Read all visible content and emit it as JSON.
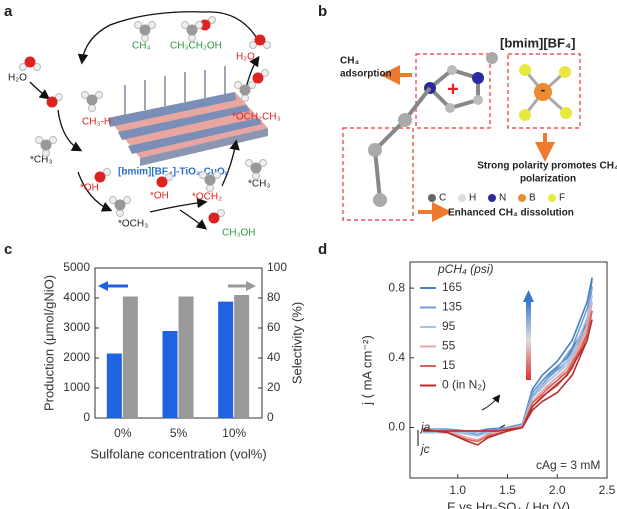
{
  "panel_labels": [
    "a",
    "b",
    "c",
    "d"
  ],
  "diagram_a": {
    "labels": [
      "H₂O",
      "CH₃-H",
      "*CH₃",
      "*OH",
      "*OCH₃",
      "*OH",
      "*OCH₂",
      "CH₃OH",
      "*CH₃",
      "*OCH₂CH₃",
      "H₂O",
      "CH₄",
      "CH₃CH₂OH",
      "[bmim][BF₄]-TiO₂-CuOₓ"
    ]
  },
  "diagram_b": {
    "title": "[bmim][BF₄]",
    "adsorption": [
      "CH₄",
      "adsorption"
    ],
    "polarization": [
      "Strong polarity promotes CH₄",
      "polarization"
    ],
    "dissolution": "Enhanced CH₄ dissolution",
    "atoms": [
      "C",
      "H",
      "N",
      "B",
      "F"
    ]
  },
  "chart_data": [
    {
      "type": "bar",
      "xlabel": "Sulfolane concentration (vol%)",
      "ylabel": "Production (μmol/gNiO)",
      "y2label": "Selectivity (%)",
      "categories": [
        "0%",
        "5%",
        "10%"
      ],
      "series": [
        {
          "color": "#1f63e0",
          "values": [
            2150,
            2900,
            3880
          ]
        },
        {
          "color": "#999999",
          "axis": "y2",
          "values": [
            81,
            81,
            82
          ]
        }
      ],
      "ylim": [
        0,
        5000
      ],
      "yticks": [
        0,
        1000,
        2000,
        3000,
        4000,
        5000
      ],
      "y2lim": [
        0,
        100
      ],
      "y2ticks": [
        0,
        20,
        40,
        60,
        80,
        100
      ]
    },
    {
      "type": "line",
      "xlabel": "E vs Hg₂SO₄ / Hg (V)",
      "ylabel": "j ( mA cm⁻²)",
      "legend_title": "pCH₄ (psi)",
      "x": [
        0.65,
        0.9,
        1.1,
        1.2,
        1.3,
        1.5,
        1.65,
        1.75,
        1.85,
        2.0,
        2.15,
        2.3,
        2.35,
        2.3,
        2.1,
        1.9,
        1.75,
        1.65,
        1.4,
        1.0,
        0.65
      ],
      "series": [
        {
          "name": "165",
          "color": "#4a7fc1",
          "values": [
            -0.01,
            -0.01,
            -0.02,
            -0.02,
            -0.01,
            0.0,
            0.02,
            0.22,
            0.3,
            0.38,
            0.5,
            0.72,
            0.86,
            0.6,
            0.4,
            0.3,
            0.2,
            0.02,
            -0.02,
            -0.03,
            -0.03
          ]
        },
        {
          "name": "135",
          "color": "#6f9fd4",
          "values": [
            -0.01,
            -0.01,
            -0.03,
            -0.04,
            -0.02,
            0.0,
            0.02,
            0.2,
            0.27,
            0.34,
            0.46,
            0.68,
            0.81,
            0.58,
            0.38,
            0.28,
            0.18,
            0.02,
            -0.02,
            -0.03,
            -0.03
          ]
        },
        {
          "name": "95",
          "color": "#a7c3e4",
          "values": [
            -0.01,
            -0.02,
            -0.04,
            -0.05,
            -0.03,
            -0.01,
            0.01,
            0.17,
            0.24,
            0.31,
            0.42,
            0.63,
            0.76,
            0.56,
            0.36,
            0.26,
            0.17,
            0.01,
            -0.02,
            -0.03,
            -0.03
          ]
        },
        {
          "name": "55",
          "color": "#e8a3a0",
          "values": [
            -0.01,
            -0.02,
            -0.06,
            -0.07,
            -0.04,
            -0.01,
            0.01,
            0.15,
            0.21,
            0.27,
            0.38,
            0.59,
            0.72,
            0.54,
            0.34,
            0.24,
            0.15,
            0.01,
            -0.02,
            -0.02,
            -0.02
          ]
        },
        {
          "name": "15",
          "color": "#d9625c",
          "values": [
            -0.01,
            -0.03,
            -0.07,
            -0.08,
            -0.05,
            -0.02,
            0.0,
            0.12,
            0.18,
            0.24,
            0.34,
            0.54,
            0.67,
            0.52,
            0.32,
            0.22,
            0.14,
            0.0,
            -0.02,
            -0.02,
            -0.02
          ]
        },
        {
          "name": "0 (in N₂)",
          "color": "#b5302d",
          "values": [
            -0.01,
            -0.03,
            -0.08,
            -0.1,
            -0.06,
            -0.02,
            0.0,
            0.1,
            0.15,
            0.2,
            0.3,
            0.5,
            0.62,
            0.5,
            0.3,
            0.2,
            0.12,
            0.0,
            -0.02,
            -0.02,
            -0.02
          ]
        }
      ],
      "xlim": [
        0.52,
        2.5
      ],
      "xticks": [
        {
          "value": 1,
          "label": "1.0"
        },
        1.5,
        {
          "value": 2,
          "label": "2.0"
        },
        2.5
      ],
      "ylim": [
        -0.29,
        0.95
      ],
      "yticks": [
        {
          "value": 0,
          "label": "0.0"
        },
        0.4,
        0.8
      ],
      "annotations": [
        "ja",
        "jc",
        "cAg = 3 mM"
      ]
    }
  ]
}
